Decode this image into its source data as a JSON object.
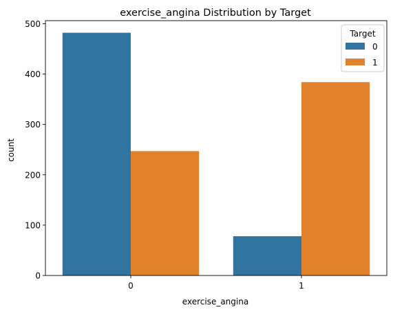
{
  "chart_data": {
    "type": "bar",
    "title": "exercise_angina Distribution by Target",
    "xlabel": "exercise_angina",
    "ylabel": "count",
    "categories": [
      "0",
      "1"
    ],
    "series": [
      {
        "name": "0",
        "values": [
          482,
          78
        ],
        "color": "#3274a1"
      },
      {
        "name": "1",
        "values": [
          247,
          384
        ],
        "color": "#e1812c"
      }
    ],
    "yticks": [
      0,
      100,
      200,
      300,
      400,
      500
    ],
    "ylim": [
      0,
      506
    ],
    "grid": false,
    "legend": {
      "title": "Target",
      "placement": "top-right"
    }
  }
}
